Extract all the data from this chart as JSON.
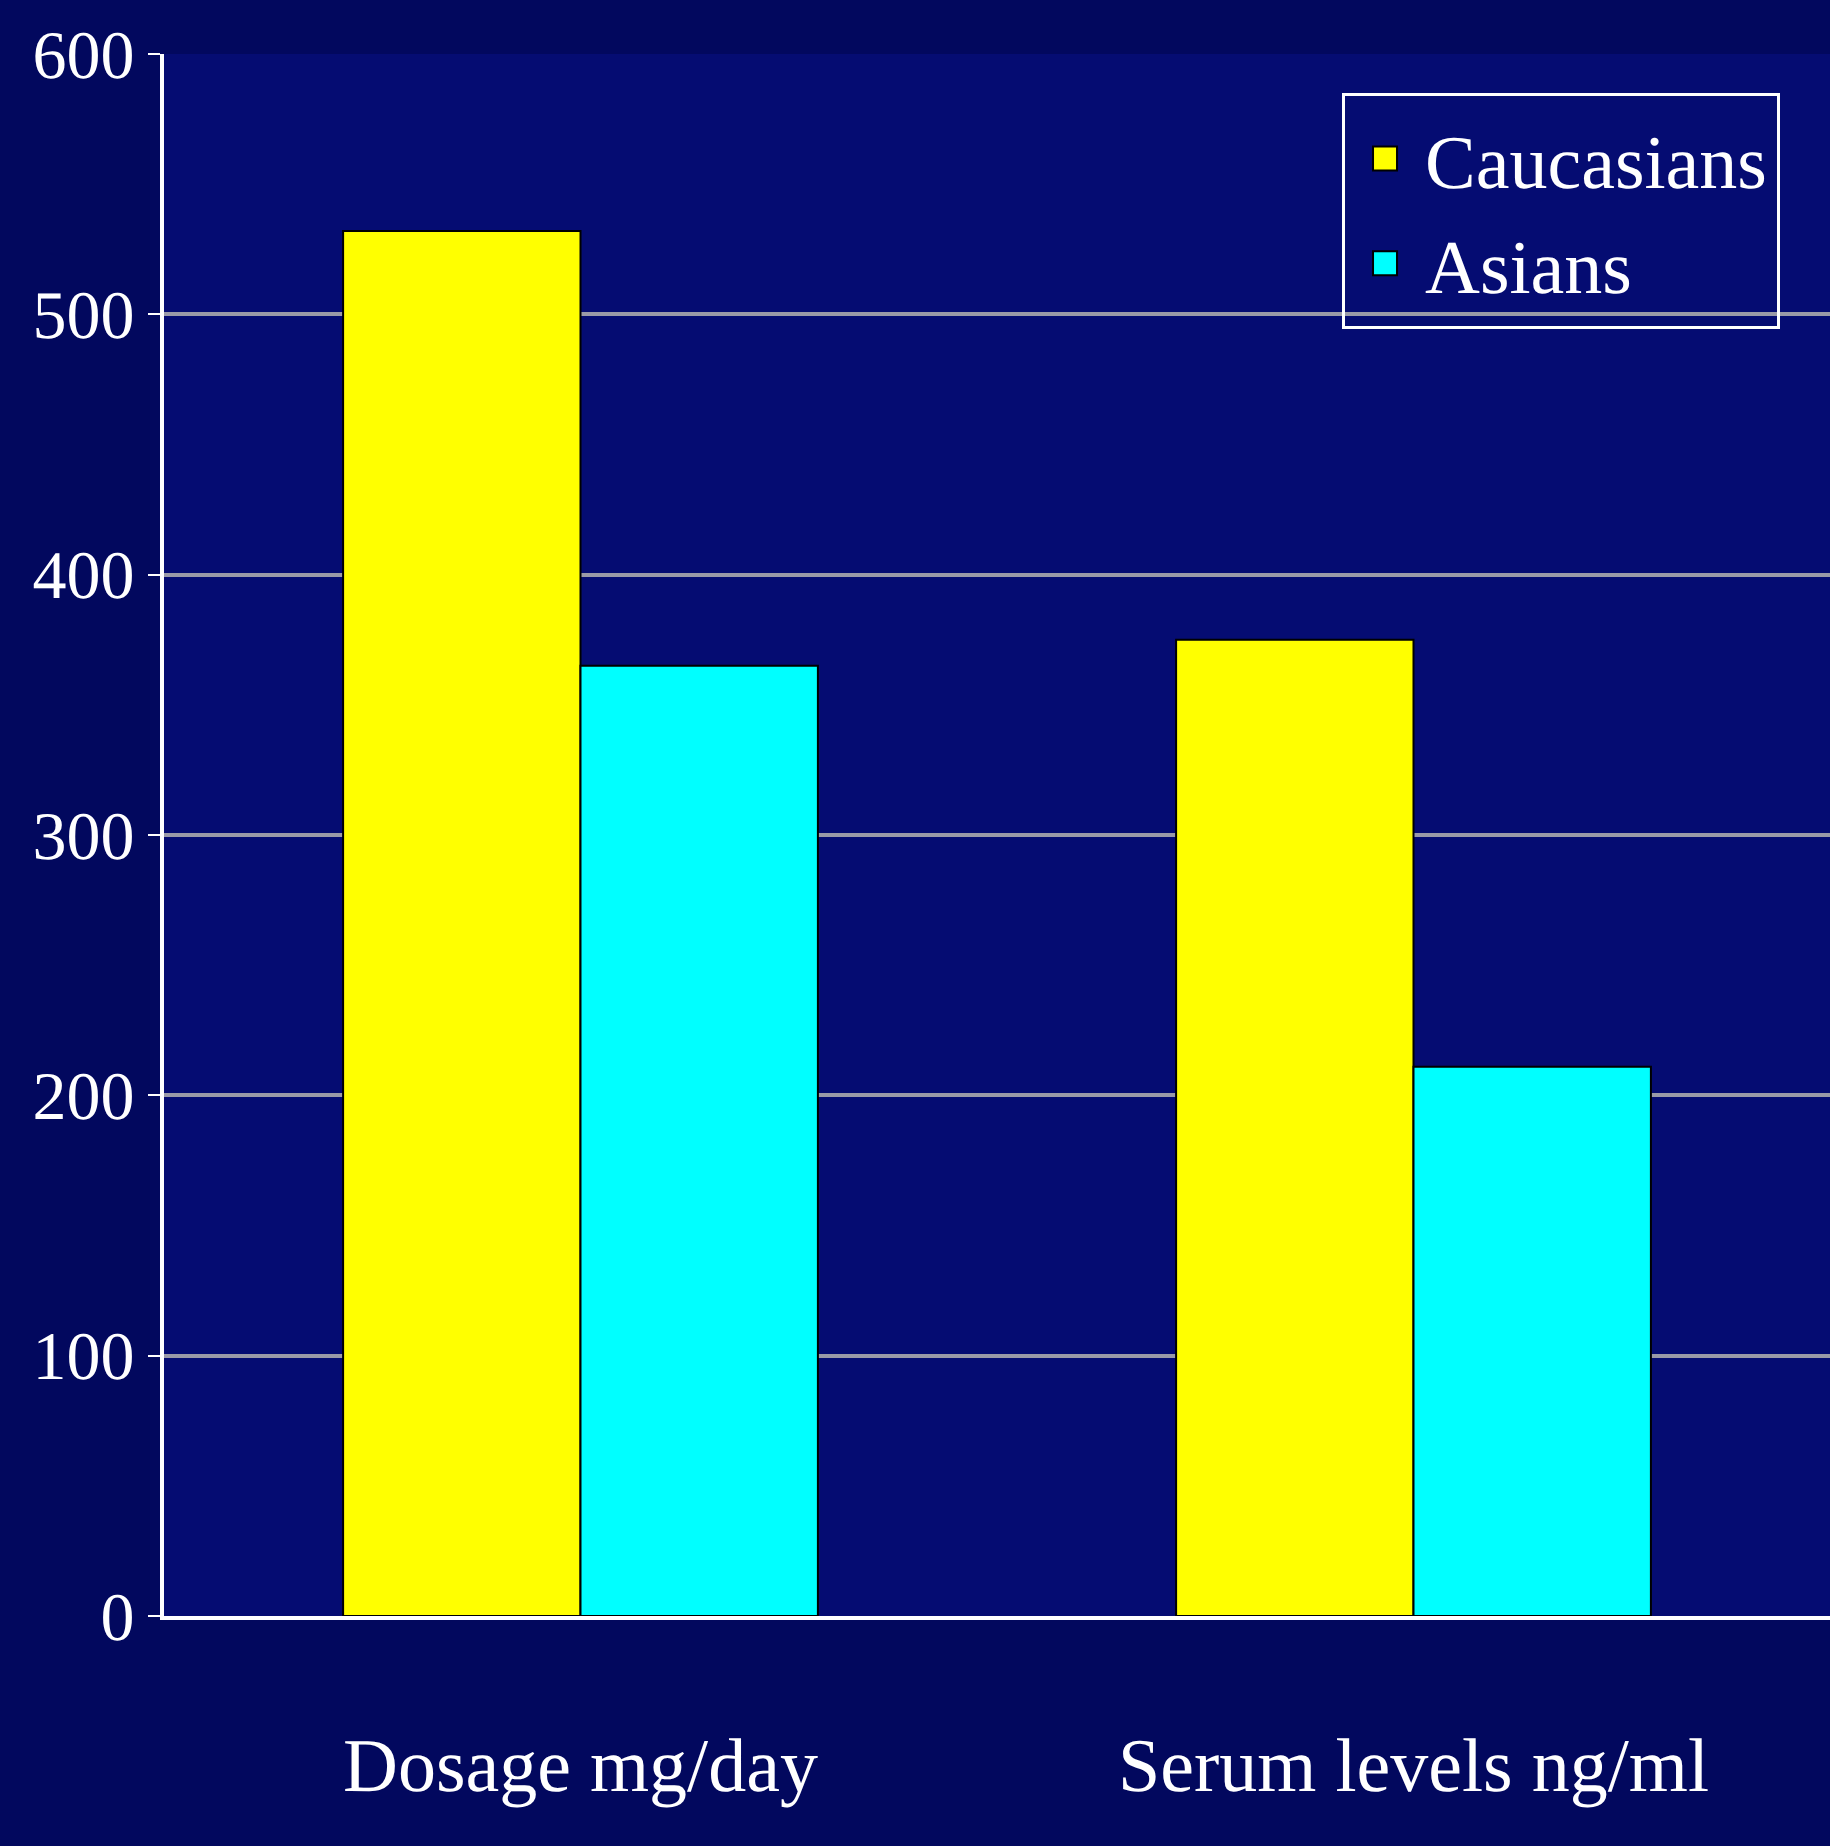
{
  "chart_data": {
    "type": "bar",
    "categories": [
      "Dosage mg/day",
      "Serum levels ng/ml"
    ],
    "series": [
      {
        "name": "Caucasians",
        "color": "#ffff00",
        "values": [
          532,
          375
        ]
      },
      {
        "name": "Asians",
        "color": "#00ffff",
        "values": [
          365,
          211
        ]
      }
    ],
    "ylim": [
      0,
      600
    ],
    "yticks": [
      0,
      100,
      200,
      300,
      400,
      500,
      600
    ],
    "grid": "y",
    "legend": "top right"
  }
}
